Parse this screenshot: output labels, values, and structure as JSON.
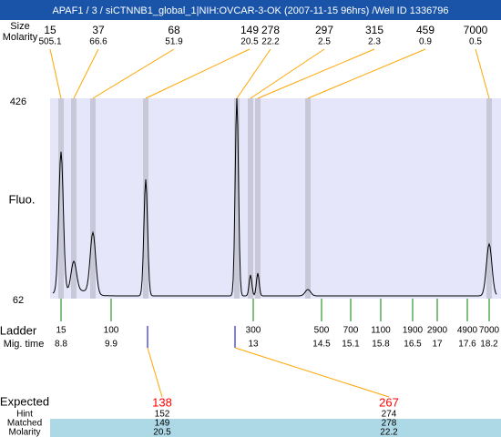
{
  "header": {
    "title": "APAF1 / 3 / siCTNNB1_global_1|NIH:OVCAR-3-OK (2007-11-15 96hrs) /Well ID 1336796"
  },
  "peaks": {
    "size_label": "Size",
    "molarity_label": "Molarity",
    "sizes": [
      "15",
      "37",
      "68",
      "149",
      "278",
      "297",
      "315",
      "459",
      "7000"
    ],
    "molarities": [
      "505.1",
      "66.6",
      "51.9",
      "20.5",
      "22.2",
      "2.5",
      "2.3",
      "0.9",
      "0.5"
    ]
  },
  "plot": {
    "y_label": "Fluo.",
    "y_top": "426",
    "y_bottom": "62"
  },
  "ladder": {
    "label": "Ladder",
    "mig_label": "Mig. time",
    "sizes": [
      "15",
      "100",
      "300",
      "500",
      "700",
      "1100",
      "1900",
      "2900",
      "4900",
      "7000"
    ],
    "mig_times": [
      "8.8",
      "9.9",
      "13",
      "14.5",
      "15.1",
      "15.8",
      "16.5",
      "17",
      "17.6",
      "18.2"
    ]
  },
  "table": {
    "expected_label": "Expected",
    "hint_label": "Hint",
    "matched_label": "Matched",
    "molarity_label": "Molarity",
    "expected": [
      "138",
      "267"
    ],
    "hint": [
      "152",
      "274"
    ],
    "matched": [
      "149",
      "278"
    ],
    "molarity": [
      "20.5",
      "22.2"
    ]
  }
}
